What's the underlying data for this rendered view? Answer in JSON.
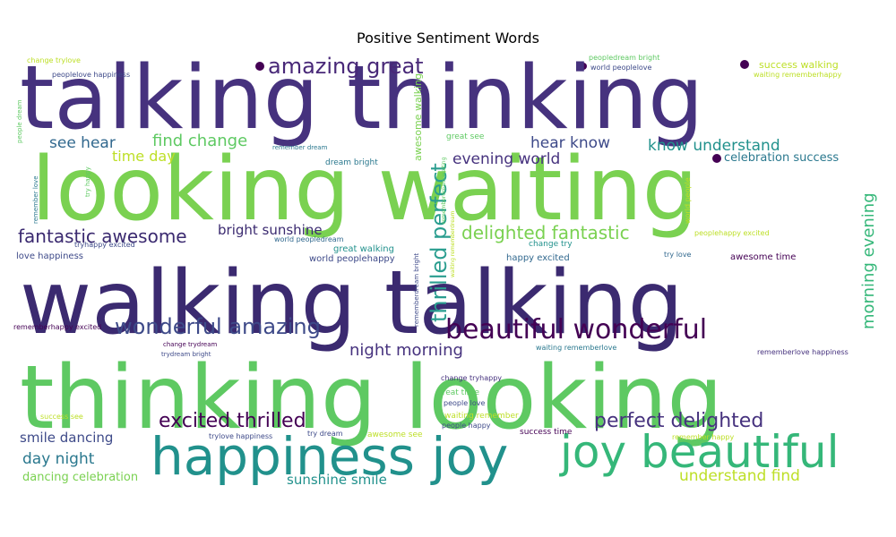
{
  "chart_data": {
    "type": "wordcloud",
    "title": "Positive Sentiment Words",
    "colormap": "viridis",
    "background": "#ffffff",
    "words": [
      {
        "text": "talking thinking",
        "weight": 100,
        "color": "#46327e",
        "rotated": false
      },
      {
        "text": "looking waiting",
        "weight": 100,
        "color": "#7ad151",
        "rotated": false
      },
      {
        "text": "walking talking",
        "weight": 100,
        "color": "#3b2a70",
        "rotated": false
      },
      {
        "text": "thinking looking",
        "weight": 100,
        "color": "#5ec962",
        "rotated": false
      },
      {
        "text": "happiness joy",
        "weight": 48,
        "color": "#21918c",
        "rotated": false
      },
      {
        "text": "joy beautiful",
        "weight": 45,
        "color": "#35b779",
        "rotated": false
      },
      {
        "text": "beautiful wonderful",
        "weight": 28,
        "color": "#440154",
        "rotated": false
      },
      {
        "text": "amazing great",
        "weight": 24,
        "color": "#482878",
        "rotated": false
      },
      {
        "text": "wonderful amazing",
        "weight": 24,
        "color": "#3e4a89",
        "rotated": false
      },
      {
        "text": "thrilled perfect",
        "weight": 24,
        "color": "#2a9d8f",
        "rotated": true
      },
      {
        "text": "excited thrilled",
        "weight": 21,
        "color": "#440154",
        "rotated": false
      },
      {
        "text": "perfect delighted",
        "weight": 21,
        "color": "#46327e",
        "rotated": false
      },
      {
        "text": "delighted fantastic",
        "weight": 19,
        "color": "#7ad151",
        "rotated": false
      },
      {
        "text": "fantastic awesome",
        "weight": 19,
        "color": "#3b2a70",
        "rotated": false
      },
      {
        "text": "morning evening",
        "weight": 17,
        "color": "#35b779",
        "rotated": true
      },
      {
        "text": "night morning",
        "weight": 17,
        "color": "#46327e",
        "rotated": false
      },
      {
        "text": "find change",
        "weight": 17,
        "color": "#5ec962",
        "rotated": false
      },
      {
        "text": "see hear",
        "weight": 16,
        "color": "#31688e",
        "rotated": false
      },
      {
        "text": "hear know",
        "weight": 16,
        "color": "#3e4a89",
        "rotated": false
      },
      {
        "text": "know understand",
        "weight": 16,
        "color": "#21918c",
        "rotated": false
      },
      {
        "text": "evening world",
        "weight": 16,
        "color": "#46327e",
        "rotated": false
      },
      {
        "text": "understand find",
        "weight": 16,
        "color": "#bddf26",
        "rotated": false
      },
      {
        "text": "day night",
        "weight": 16,
        "color": "#2a788e",
        "rotated": false
      },
      {
        "text": "time day",
        "weight": 15,
        "color": "#bddf26",
        "rotated": false
      },
      {
        "text": "bright sunshine",
        "weight": 14,
        "color": "#3b2a70",
        "rotated": false
      },
      {
        "text": "smile dancing",
        "weight": 14,
        "color": "#3e4a89",
        "rotated": false
      },
      {
        "text": "sunshine smile",
        "weight": 14,
        "color": "#21918c",
        "rotated": false
      },
      {
        "text": "dancing celebration",
        "weight": 12,
        "color": "#7ad151",
        "rotated": false
      },
      {
        "text": "celebration success",
        "weight": 12,
        "color": "#2a788e",
        "rotated": false
      },
      {
        "text": "success walking",
        "weight": 10,
        "color": "#bddf26",
        "rotated": false
      },
      {
        "text": "awesome walking",
        "weight": 10,
        "color": "#7ad151",
        "rotated": true
      },
      {
        "text": "great walking",
        "weight": 9,
        "color": "#21918c",
        "rotated": false
      },
      {
        "text": "world peoplehappy",
        "weight": 9,
        "color": "#3e4a89",
        "rotated": false
      },
      {
        "text": "love happiness",
        "weight": 9,
        "color": "#3e4a89",
        "rotated": false
      },
      {
        "text": "happy excited",
        "weight": 9,
        "color": "#31688e",
        "rotated": false
      },
      {
        "text": "awesome time",
        "weight": 9,
        "color": "#440154",
        "rotated": false
      },
      {
        "text": "change trylove",
        "weight": 8,
        "color": "#bddf26",
        "rotated": false
      },
      {
        "text": "peoplelove happiness",
        "weight": 8,
        "color": "#3e4a89",
        "rotated": false
      },
      {
        "text": "peopledream bright",
        "weight": 8,
        "color": "#5ec962",
        "rotated": false
      },
      {
        "text": "world peoplelove",
        "weight": 8,
        "color": "#3e4a89",
        "rotated": false
      },
      {
        "text": "waiting rememberhappy",
        "weight": 8,
        "color": "#bddf26",
        "rotated": false
      },
      {
        "text": "people dream",
        "weight": 7,
        "color": "#5ec962",
        "rotated": true
      },
      {
        "text": "remember dream",
        "weight": 7,
        "color": "#2a788e",
        "rotated": false
      },
      {
        "text": "great see",
        "weight": 8,
        "color": "#5ec962",
        "rotated": false
      },
      {
        "text": "dream bright",
        "weight": 8,
        "color": "#2a788e",
        "rotated": false
      },
      {
        "text": "try happy",
        "weight": 7,
        "color": "#5ec962",
        "rotated": true
      },
      {
        "text": "remember love",
        "weight": 7,
        "color": "#2a788e",
        "rotated": true
      },
      {
        "text": "rememberdream waiting",
        "weight": 6,
        "color": "#5ec962",
        "rotated": true
      },
      {
        "text": "waiting rememberdream",
        "weight": 6,
        "color": "#bddf26",
        "rotated": true
      },
      {
        "text": "world people",
        "weight": 7,
        "color": "#bddf26",
        "rotated": true
      },
      {
        "text": "tryhappy excited",
        "weight": 7,
        "color": "#3e4a89",
        "rotated": false
      },
      {
        "text": "world peopledream",
        "weight": 7,
        "color": "#31688e",
        "rotated": false
      },
      {
        "text": "rememberdream bright",
        "weight": 7,
        "color": "#3e4a89",
        "rotated": true
      },
      {
        "text": "change try",
        "weight": 8,
        "color": "#21918c",
        "rotated": false
      },
      {
        "text": "peoplehappy excited",
        "weight": 7,
        "color": "#bddf26",
        "rotated": false
      },
      {
        "text": "try love",
        "weight": 7,
        "color": "#31688e",
        "rotated": false
      },
      {
        "text": "rememberhappy excited",
        "weight": 7,
        "color": "#440154",
        "rotated": false
      },
      {
        "text": "change trydream",
        "weight": 7,
        "color": "#440154",
        "rotated": false
      },
      {
        "text": "trydream bright",
        "weight": 7,
        "color": "#3e4a89",
        "rotated": false
      },
      {
        "text": "waiting rememberlove",
        "weight": 7,
        "color": "#2a788e",
        "rotated": false
      },
      {
        "text": "rememberlove happiness",
        "weight": 7,
        "color": "#46327e",
        "rotated": false
      },
      {
        "text": "change tryhappy",
        "weight": 7,
        "color": "#46327e",
        "rotated": false
      },
      {
        "text": "great time",
        "weight": 8,
        "color": "#5ec962",
        "rotated": false
      },
      {
        "text": "people love",
        "weight": 7,
        "color": "#3e4a89",
        "rotated": false
      },
      {
        "text": "waiting remember",
        "weight": 8,
        "color": "#bddf26",
        "rotated": false
      },
      {
        "text": "people happy",
        "weight": 7,
        "color": "#3e4a89",
        "rotated": false
      },
      {
        "text": "success time",
        "weight": 7,
        "color": "#440154",
        "rotated": false
      },
      {
        "text": "success see",
        "weight": 7,
        "color": "#bddf26",
        "rotated": false
      },
      {
        "text": "trylove happiness",
        "weight": 7,
        "color": "#3e4a89",
        "rotated": false
      },
      {
        "text": "try dream",
        "weight": 7,
        "color": "#3e4a89",
        "rotated": false
      },
      {
        "text": "awesome see",
        "weight": 8,
        "color": "#bddf26",
        "rotated": false
      },
      {
        "text": "remember happy",
        "weight": 7,
        "color": "#bddf26",
        "rotated": false
      }
    ]
  }
}
